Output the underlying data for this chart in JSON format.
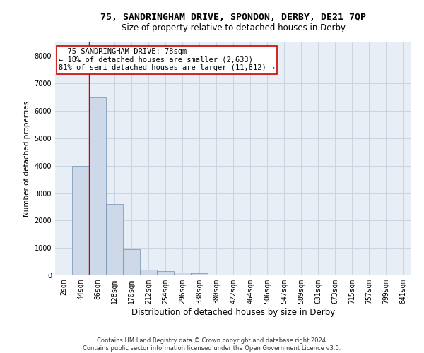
{
  "title": "75, SANDRINGHAM DRIVE, SPONDON, DERBY, DE21 7QP",
  "subtitle": "Size of property relative to detached houses in Derby",
  "xlabel": "Distribution of detached houses by size in Derby",
  "ylabel": "Number of detached properties",
  "bar_color": "#cdd9e8",
  "bar_edge_color": "#7090b0",
  "categories": [
    "2sqm",
    "44sqm",
    "86sqm",
    "128sqm",
    "170sqm",
    "212sqm",
    "254sqm",
    "296sqm",
    "338sqm",
    "380sqm",
    "422sqm",
    "464sqm",
    "506sqm",
    "547sqm",
    "589sqm",
    "631sqm",
    "673sqm",
    "715sqm",
    "757sqm",
    "799sqm",
    "841sqm"
  ],
  "values": [
    10,
    4000,
    6500,
    2600,
    950,
    200,
    150,
    100,
    75,
    30,
    5,
    0,
    0,
    0,
    0,
    0,
    0,
    0,
    0,
    0,
    0
  ],
  "ylim": [
    0,
    8500
  ],
  "yticks": [
    0,
    1000,
    2000,
    3000,
    4000,
    5000,
    6000,
    7000,
    8000
  ],
  "property_line_x": 1.5,
  "annotation_line1": "  75 SANDRINGHAM DRIVE: 78sqm",
  "annotation_line2": "← 18% of detached houses are smaller (2,633)",
  "annotation_line3": "81% of semi-detached houses are larger (11,812) →",
  "annotation_box_color": "#ffffff",
  "annotation_box_edge_color": "#cc0000",
  "footnote": "Contains HM Land Registry data © Crown copyright and database right 2024.\nContains public sector information licensed under the Open Government Licence v3.0.",
  "grid_color": "#c8d0de",
  "background_color": "#e8eef5",
  "title_fontsize": 9.5,
  "subtitle_fontsize": 8.5,
  "xlabel_fontsize": 8.5,
  "ylabel_fontsize": 7.5,
  "tick_fontsize": 7,
  "annotation_fontsize": 7.5,
  "footnote_fontsize": 6
}
